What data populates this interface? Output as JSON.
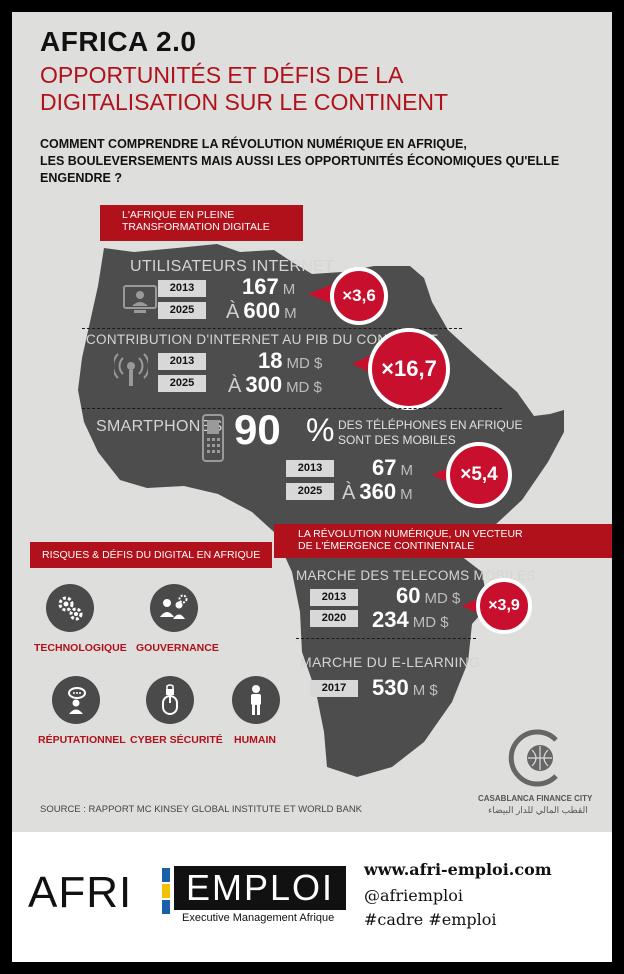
{
  "header": {
    "title": "AFRICA 2.0",
    "subtitle_line1": "OPPORTUNITÉS ET DÉFIS DE LA",
    "subtitle_line2": "DIGITALISATION SUR LE CONTINENT",
    "question_line1": "COMMENT COMPRENDRE LA RÉVOLUTION NUMÉRIQUE EN AFRIQUE,",
    "question_line2": "LES BOULEVERSEMENTS MAIS AUSSI LES OPPORTUNITÉS ÉCONOMIQUES QU'ELLE ENGENDRE ?"
  },
  "section1": {
    "line1": "L'AFRIQUE EN PLEINE",
    "line2": "TRANSFORMATION DIGITALE"
  },
  "internet": {
    "title": "UTILISATEURS INTERNET",
    "year1": "2013",
    "value1": "167",
    "unit1": "M",
    "year2": "2025",
    "prefix2": "À",
    "value2": "600",
    "unit2": "M",
    "multiplier": "×3,6"
  },
  "gdp": {
    "title": "CONTRIBUTION D'INTERNET AU PIB DU CONTINENT",
    "year1": "2013",
    "value1": "18",
    "unit1": "MD $",
    "year2": "2025",
    "prefix2": "À",
    "value2": "300",
    "unit2": "MD $",
    "multiplier": "×16,7"
  },
  "smartphones": {
    "label": "SMARTPHONES",
    "percent": "90",
    "percent_sign": "%",
    "desc_line1": "DES TÉLÉPHONES EN AFRIQUE",
    "desc_line2": "SONT DES MOBILES",
    "year1": "2013",
    "value1": "67",
    "unit1": "M",
    "year2": "2025",
    "prefix2": "À",
    "value2": "360",
    "unit2": "M",
    "multiplier": "×5,4"
  },
  "section2": {
    "line1": "LA RÉVOLUTION NUMÉRIQUE, UN VECTEUR",
    "line2": "DE L'ÉMERGENCE CONTINENTALE"
  },
  "telecom": {
    "title": "MARCHE DES TELECOMS MOBILES",
    "year1": "2013",
    "value1": "60",
    "unit1": "MD $",
    "year2": "2020",
    "value2": "234",
    "unit2": "MD $",
    "multiplier": "×3,9"
  },
  "elearning": {
    "title": "MARCHE DU E-LEARNING",
    "year1": "2017",
    "value1": "530",
    "unit1": "M $"
  },
  "risks": {
    "title": "RISQUES & DÉFIS DU DIGITAL EN AFRIQUE",
    "items": [
      "TECHNOLOGIQUE",
      "GOUVERNANCE",
      "RÉPUTATIONNEL",
      "CYBER SÉCURITÉ",
      "HUMAIN"
    ]
  },
  "source": "SOURCE : RAPPORT MC KINSEY GLOBAL INSTITUTE ET WORLD BANK",
  "cfc": {
    "name": "CASABLANCA FINANCE CITY",
    "arabic": "القطب المالي للدار البيضاء"
  },
  "footer": {
    "logo_afri": "AFRI",
    "logo_emploi": "EMPLOI",
    "tagline": "Executive Management Afrique",
    "website": "www.afri-emploi.com",
    "handle": "@afriemploi",
    "hashtags": "#cadre #emploi"
  },
  "colors": {
    "accent_red": "#b0111a",
    "badge_red": "#c8102e",
    "map_gray": "#4d4d4d",
    "background": "#dededd"
  }
}
